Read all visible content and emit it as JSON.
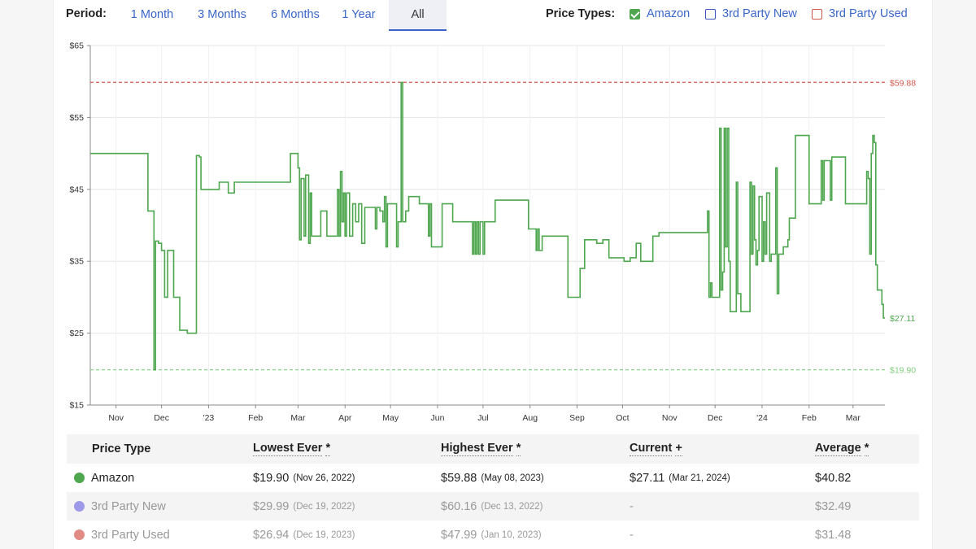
{
  "toolbar": {
    "period_label": "Period:",
    "periods": [
      "1 Month",
      "3 Months",
      "6 Months",
      "1 Year",
      "All"
    ],
    "active_period": "All",
    "price_types_label": "Price Types:",
    "price_types": [
      {
        "label": "Amazon",
        "checked": true,
        "color": "#4ea64e"
      },
      {
        "label": "3rd Party New",
        "checked": false,
        "color": "#3b52c4"
      },
      {
        "label": "3rd Party Used",
        "checked": false,
        "color": "#d0574d"
      }
    ]
  },
  "chart_data": {
    "type": "line",
    "title": "",
    "xlabel": "",
    "ylabel": "",
    "ylim": [
      15,
      65
    ],
    "y_ticks": [
      15,
      25,
      35,
      45,
      55,
      65
    ],
    "y_tick_labels": [
      "$15",
      "$25",
      "$35",
      "$45",
      "$55",
      "$65"
    ],
    "xlim": [
      "2022-10-15",
      "2024-03-22"
    ],
    "x_ticks": [
      {
        "date": "2022-11-01",
        "label": "Nov"
      },
      {
        "date": "2022-12-01",
        "label": "Dec"
      },
      {
        "date": "2023-01-01",
        "label": "'23"
      },
      {
        "date": "2023-02-01",
        "label": "Feb"
      },
      {
        "date": "2023-03-01",
        "label": "Mar"
      },
      {
        "date": "2023-04-01",
        "label": "Apr"
      },
      {
        "date": "2023-05-01",
        "label": "May"
      },
      {
        "date": "2023-06-01",
        "label": "Jun"
      },
      {
        "date": "2023-07-01",
        "label": "Jul"
      },
      {
        "date": "2023-08-01",
        "label": "Aug"
      },
      {
        "date": "2023-09-01",
        "label": "Sep"
      },
      {
        "date": "2023-10-01",
        "label": "Oct"
      },
      {
        "date": "2023-11-01",
        "label": "Nov"
      },
      {
        "date": "2023-12-01",
        "label": "Dec"
      },
      {
        "date": "2024-01-01",
        "label": "'24"
      },
      {
        "date": "2024-02-01",
        "label": "Feb"
      },
      {
        "date": "2024-03-01",
        "label": "Mar"
      }
    ],
    "grid": true,
    "step": true,
    "reference_lines": [
      {
        "name": "highest",
        "value": 59.88,
        "label": "$59.88",
        "color": "#d0574d"
      },
      {
        "name": "lowest",
        "value": 19.9,
        "label": "$19.90",
        "color": "#7fce7f"
      }
    ],
    "current_label": {
      "value": 27.11,
      "label": "$27.11",
      "color": "#4ea64e"
    },
    "series": [
      {
        "name": "Amazon",
        "color": "#4ea64e",
        "points": [
          [
            "2022-10-15",
            49.99
          ],
          [
            "2022-11-22",
            41.99
          ],
          [
            "2022-11-25",
            41.99
          ],
          [
            "2022-11-26",
            19.9
          ],
          [
            "2022-11-27",
            37.8
          ],
          [
            "2022-11-29",
            37.5
          ],
          [
            "2022-12-01",
            36.5
          ],
          [
            "2022-12-03",
            30.0
          ],
          [
            "2022-12-05",
            36.5
          ],
          [
            "2022-12-09",
            30.0
          ],
          [
            "2022-12-13",
            25.4
          ],
          [
            "2022-12-18",
            24.99
          ],
          [
            "2022-12-21",
            24.99
          ],
          [
            "2022-12-24",
            49.69
          ],
          [
            "2022-12-26",
            49.5
          ],
          [
            "2022-12-27",
            44.99
          ],
          [
            "2023-01-05",
            44.99
          ],
          [
            "2023-01-08",
            45.99
          ],
          [
            "2023-01-13",
            45.99
          ],
          [
            "2023-01-14",
            44.49
          ],
          [
            "2023-01-18",
            45.99
          ],
          [
            "2023-02-23",
            45.99
          ],
          [
            "2023-02-24",
            49.99
          ],
          [
            "2023-02-27",
            49.99
          ],
          [
            "2023-03-01",
            47.99
          ],
          [
            "2023-03-02",
            37.99
          ],
          [
            "2023-03-03",
            46.49
          ],
          [
            "2023-03-05",
            38.49
          ],
          [
            "2023-03-06",
            46.99
          ],
          [
            "2023-03-08",
            37.49
          ],
          [
            "2023-03-09",
            44.49
          ],
          [
            "2023-03-10",
            38.49
          ],
          [
            "2023-03-15",
            38.49
          ],
          [
            "2023-03-16",
            41.99
          ],
          [
            "2023-03-20",
            38.49
          ],
          [
            "2023-03-26",
            38.49
          ],
          [
            "2023-03-27",
            44.99
          ],
          [
            "2023-03-28",
            38.49
          ],
          [
            "2023-03-29",
            47.49
          ],
          [
            "2023-03-30",
            40.49
          ],
          [
            "2023-03-31",
            44.49
          ],
          [
            "2023-04-01",
            38.49
          ],
          [
            "2023-04-02",
            44.49
          ],
          [
            "2023-04-04",
            38.49
          ],
          [
            "2023-04-06",
            42.99
          ],
          [
            "2023-04-08",
            40.49
          ],
          [
            "2023-04-10",
            42.99
          ],
          [
            "2023-04-12",
            37.49
          ],
          [
            "2023-04-14",
            42.49
          ],
          [
            "2023-04-20",
            42.49
          ],
          [
            "2023-04-21",
            39.49
          ],
          [
            "2023-04-22",
            42.49
          ],
          [
            "2023-04-24",
            41.99
          ],
          [
            "2023-04-26",
            40.49
          ],
          [
            "2023-04-27",
            43.99
          ],
          [
            "2023-04-28",
            36.99
          ],
          [
            "2023-04-29",
            42.99
          ],
          [
            "2023-05-03",
            42.99
          ],
          [
            "2023-05-05",
            36.99
          ],
          [
            "2023-05-06",
            40.49
          ],
          [
            "2023-05-08",
            59.88
          ],
          [
            "2023-05-09",
            40.49
          ],
          [
            "2023-05-11",
            41.99
          ],
          [
            "2023-05-13",
            43.99
          ],
          [
            "2023-05-19",
            43.99
          ],
          [
            "2023-05-20",
            42.99
          ],
          [
            "2023-05-25",
            42.99
          ],
          [
            "2023-05-26",
            38.49
          ],
          [
            "2023-05-27",
            42.99
          ],
          [
            "2023-05-28",
            36.99
          ],
          [
            "2023-06-03",
            36.99
          ],
          [
            "2023-06-04",
            42.99
          ],
          [
            "2023-06-10",
            42.99
          ],
          [
            "2023-06-11",
            40.49
          ],
          [
            "2023-06-23",
            40.49
          ],
          [
            "2023-06-24",
            35.99
          ],
          [
            "2023-06-25",
            40.49
          ],
          [
            "2023-06-26",
            35.99
          ],
          [
            "2023-06-27",
            40.49
          ],
          [
            "2023-06-28",
            35.99
          ],
          [
            "2023-06-29",
            40.49
          ],
          [
            "2023-07-01",
            35.99
          ],
          [
            "2023-07-02",
            40.49
          ],
          [
            "2023-07-08",
            40.49
          ],
          [
            "2023-07-09",
            43.49
          ],
          [
            "2023-07-30",
            43.49
          ],
          [
            "2023-07-31",
            39.49
          ],
          [
            "2023-08-04",
            39.49
          ],
          [
            "2023-08-05",
            36.49
          ],
          [
            "2023-08-06",
            39.49
          ],
          [
            "2023-08-07",
            36.49
          ],
          [
            "2023-08-09",
            38.49
          ],
          [
            "2023-08-25",
            38.49
          ],
          [
            "2023-08-26",
            29.99
          ],
          [
            "2023-09-02",
            29.99
          ],
          [
            "2023-09-03",
            33.99
          ],
          [
            "2023-09-06",
            37.99
          ],
          [
            "2023-09-13",
            37.99
          ],
          [
            "2023-09-14",
            37.49
          ],
          [
            "2023-09-17",
            37.49
          ],
          [
            "2023-09-18",
            37.99
          ],
          [
            "2023-09-21",
            37.99
          ],
          [
            "2023-09-22",
            35.49
          ],
          [
            "2023-10-01",
            35.49
          ],
          [
            "2023-10-02",
            34.99
          ],
          [
            "2023-10-05",
            34.99
          ],
          [
            "2023-10-06",
            35.49
          ],
          [
            "2023-10-09",
            35.49
          ],
          [
            "2023-10-10",
            37.49
          ],
          [
            "2023-10-13",
            34.99
          ],
          [
            "2023-10-20",
            34.99
          ],
          [
            "2023-10-21",
            38.49
          ],
          [
            "2023-10-24",
            38.49
          ],
          [
            "2023-10-25",
            38.99
          ],
          [
            "2023-11-25",
            38.99
          ],
          [
            "2023-11-26",
            41.99
          ],
          [
            "2023-11-27",
            29.99
          ],
          [
            "2023-11-28",
            31.99
          ],
          [
            "2023-11-29",
            29.99
          ],
          [
            "2023-12-03",
            29.99
          ],
          [
            "2023-12-04",
            53.49
          ],
          [
            "2023-12-05",
            30.99
          ],
          [
            "2023-12-06",
            33.49
          ],
          [
            "2023-12-07",
            53.49
          ],
          [
            "2023-12-08",
            36.99
          ],
          [
            "2023-12-09",
            53.49
          ],
          [
            "2023-12-10",
            34.99
          ],
          [
            "2023-12-11",
            27.99
          ],
          [
            "2023-12-15",
            45.99
          ],
          [
            "2023-12-16",
            30.49
          ],
          [
            "2023-12-18",
            27.99
          ],
          [
            "2023-12-23",
            27.99
          ],
          [
            "2023-12-24",
            45.99
          ],
          [
            "2023-12-25",
            35.99
          ],
          [
            "2023-12-26",
            45.49
          ],
          [
            "2023-12-27",
            37.99
          ],
          [
            "2023-12-28",
            34.49
          ],
          [
            "2023-12-29",
            36.49
          ],
          [
            "2023-12-30",
            43.99
          ],
          [
            "2024-01-01",
            34.99
          ],
          [
            "2024-01-02",
            40.49
          ],
          [
            "2024-01-03",
            35.99
          ],
          [
            "2024-01-04",
            44.49
          ],
          [
            "2024-01-06",
            34.99
          ],
          [
            "2024-01-07",
            35.99
          ],
          [
            "2024-01-09",
            35.99
          ],
          [
            "2024-01-10",
            47.99
          ],
          [
            "2024-01-11",
            30.49
          ],
          [
            "2024-01-12",
            35.99
          ],
          [
            "2024-01-14",
            35.99
          ],
          [
            "2024-01-15",
            36.99
          ],
          [
            "2024-01-18",
            37.99
          ],
          [
            "2024-01-19",
            40.99
          ],
          [
            "2024-01-22",
            40.99
          ],
          [
            "2024-01-23",
            52.49
          ],
          [
            "2024-01-31",
            52.49
          ],
          [
            "2024-02-01",
            42.99
          ],
          [
            "2024-02-08",
            42.99
          ],
          [
            "2024-02-09",
            48.99
          ],
          [
            "2024-02-10",
            43.49
          ],
          [
            "2024-02-11",
            48.99
          ],
          [
            "2024-02-14",
            48.99
          ],
          [
            "2024-02-15",
            43.49
          ],
          [
            "2024-02-16",
            49.49
          ],
          [
            "2024-02-24",
            49.49
          ],
          [
            "2024-02-25",
            42.99
          ],
          [
            "2024-03-09",
            42.99
          ],
          [
            "2024-03-10",
            47.49
          ],
          [
            "2024-03-11",
            46.49
          ],
          [
            "2024-03-12",
            35.99
          ],
          [
            "2024-03-13",
            49.99
          ],
          [
            "2024-03-14",
            52.49
          ],
          [
            "2024-03-15",
            51.49
          ],
          [
            "2024-03-16",
            34.49
          ],
          [
            "2024-03-17",
            30.99
          ],
          [
            "2024-03-20",
            28.99
          ],
          [
            "2024-03-21",
            27.11
          ],
          [
            "2024-03-22",
            27.11
          ]
        ]
      }
    ]
  },
  "stats": {
    "headers": [
      "Price Type",
      "Lowest Ever",
      "Highest Ever",
      "Current",
      "Average"
    ],
    "rows": [
      {
        "name": "Amazon",
        "color": "#4ea64e",
        "active": true,
        "lowest": "$19.90",
        "lowest_date": "(Nov 26, 2022)",
        "highest": "$59.88",
        "highest_date": "(May 08, 2023)",
        "current": "$27.11",
        "current_date": "(Mar 21, 2024)",
        "average": "$40.82"
      },
      {
        "name": "3rd Party New",
        "color": "#9d99e8",
        "active": false,
        "lowest": "$29.99",
        "lowest_date": "(Dec 19, 2022)",
        "highest": "$60.16",
        "highest_date": "(Dec 13, 2022)",
        "current": "-",
        "current_date": "",
        "average": "$32.49"
      },
      {
        "name": "3rd Party Used",
        "color": "#e28a84",
        "active": false,
        "lowest": "$26.94",
        "lowest_date": "(Dec 19, 2023)",
        "highest": "$47.99",
        "highest_date": "(Jan 10, 2023)",
        "current": "-",
        "current_date": "",
        "average": "$31.48"
      }
    ]
  }
}
